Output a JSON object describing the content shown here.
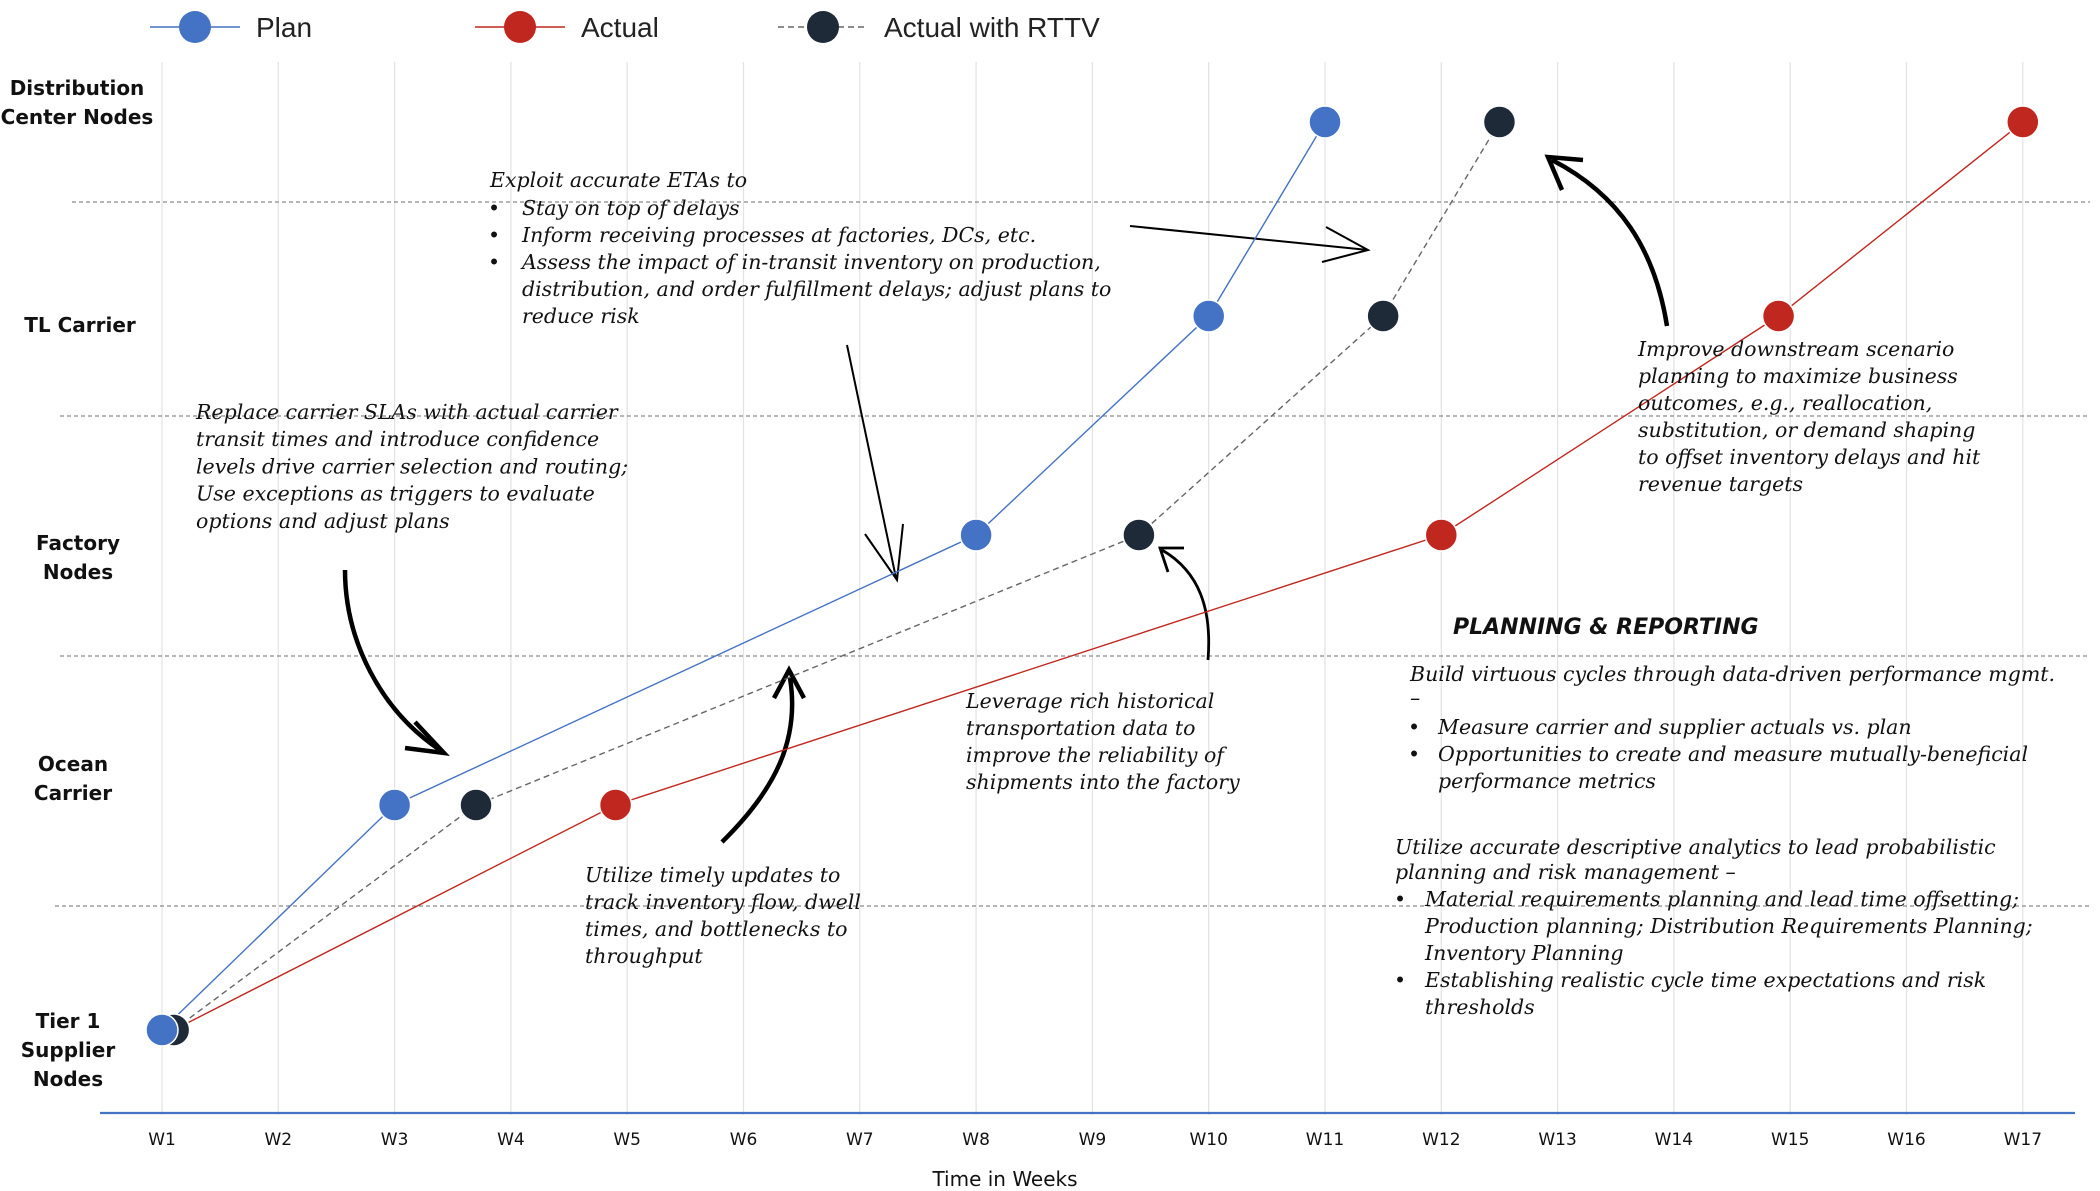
{
  "chart_data": {
    "type": "line",
    "xlabel": "Time in Weeks",
    "categories": [
      "W1",
      "W2",
      "W3",
      "W4",
      "W5",
      "W6",
      "W7",
      "W8",
      "W9",
      "W10",
      "W11",
      "W12",
      "W13",
      "W14",
      "W15",
      "W16",
      "W17"
    ],
    "row_labels": [
      [
        "Distribution",
        "Center Nodes"
      ],
      [
        "TL Carrier"
      ],
      [
        "Factory",
        "Nodes"
      ],
      [
        "Ocean",
        "Carrier"
      ],
      [
        "Tier 1",
        "Supplier",
        "Nodes"
      ]
    ],
    "legend": {
      "position": "top-left"
    },
    "series": [
      {
        "name": "Plan",
        "color": "#4472c4",
        "line": "solid",
        "points": [
          {
            "x": 1.0,
            "y": 0
          },
          {
            "x": 3.0,
            "y": 1
          },
          {
            "x": 8.0,
            "y": 2
          },
          {
            "x": 10.0,
            "y": 3
          },
          {
            "x": 11.0,
            "y": 4
          }
        ]
      },
      {
        "name": "Actual",
        "color": "#c0271e",
        "line": "solid",
        "points": [
          {
            "x": 1.1,
            "y": 0
          },
          {
            "x": 4.9,
            "y": 1
          },
          {
            "x": 12.0,
            "y": 2
          },
          {
            "x": 14.9,
            "y": 3
          },
          {
            "x": 17.0,
            "y": 4
          }
        ]
      },
      {
        "name": "Actual with RTTV",
        "color": "#1f2a38",
        "line": "dashed",
        "points": [
          {
            "x": 1.1,
            "y": 0
          },
          {
            "x": 3.7,
            "y": 1
          },
          {
            "x": 9.4,
            "y": 2
          },
          {
            "x": 11.5,
            "y": 3
          },
          {
            "x": 12.5,
            "y": 4
          }
        ]
      }
    ]
  },
  "annotations": {
    "etas": {
      "title": "Exploit accurate ETAs to",
      "bullets": [
        [
          "Stay on top of delays"
        ],
        [
          "Inform receiving processes at factories, DCs, etc."
        ],
        [
          "Assess the impact of in-transit inventory on production,",
          "distribution, and order fulfillment delays; adjust plans to",
          "reduce risk"
        ]
      ]
    },
    "carrier_sla": [
      "Replace carrier SLAs with actual carrier",
      "transit times and introduce confidence",
      "levels drive carrier selection and routing;",
      "Use exceptions as triggers to evaluate",
      "options and adjust plans"
    ],
    "timely_updates": [
      "Utilize timely updates to",
      "track inventory flow, dwell",
      "times, and bottlenecks to",
      "throughput"
    ],
    "historical": [
      "Leverage rich historical",
      "transportation data to",
      "improve the reliability of",
      "shipments into the factory"
    ],
    "downstream": [
      "Improve downstream scenario",
      "planning to maximize business",
      "outcomes, e.g., reallocation,",
      "substitution, or demand shaping",
      "to offset inventory delays and hit",
      "revenue targets"
    ],
    "planning": {
      "heading": "PLANNING & REPORTING",
      "intro": [
        "Build virtuous cycles through data-driven performance mgmt.",
        "–"
      ],
      "bullets": [
        [
          "Measure carrier and supplier actuals vs. plan"
        ],
        [
          "Opportunities to create and measure mutually-beneficial",
          "performance metrics"
        ]
      ],
      "intro2": [
        "Utilize accurate descriptive analytics to lead probabilistic",
        "planning and risk management –"
      ],
      "bullets2": [
        [
          "Material requirements planning and lead time offsetting;",
          "Production planning; Distribution Requirements Planning;",
          "Inventory Planning"
        ],
        [
          "Establishing realistic cycle time expectations and risk",
          "thresholds"
        ]
      ]
    }
  }
}
